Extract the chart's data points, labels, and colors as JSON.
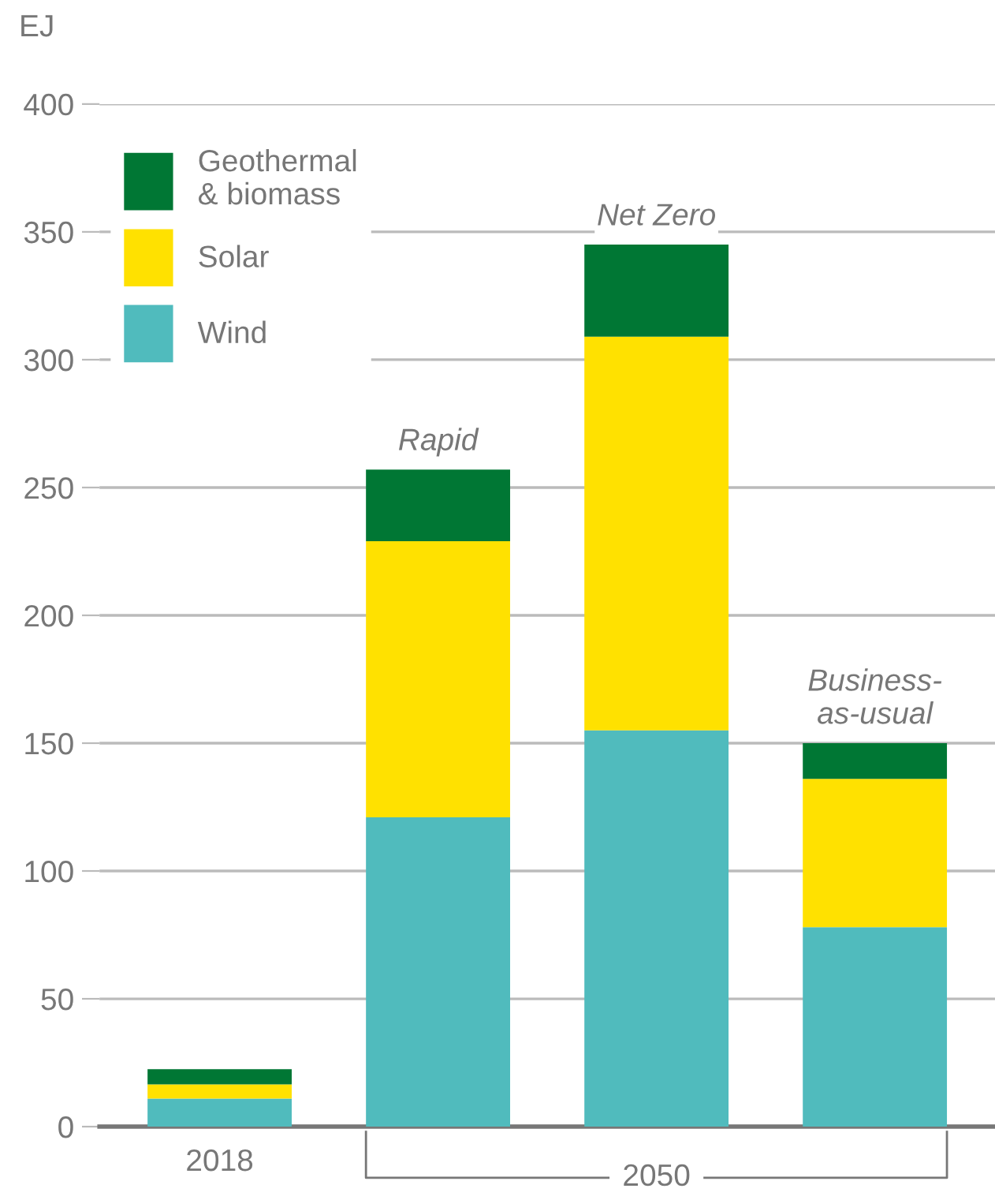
{
  "chart_data": {
    "type": "bar",
    "stacked": true,
    "ylabel": "EJ",
    "categories": [
      "2018",
      null,
      null,
      null
    ],
    "series": [
      {
        "name": "Wind",
        "color": "#50bbbd",
        "values": [
          11,
          121,
          155,
          78
        ]
      },
      {
        "name": "Solar",
        "color": "#ffe100",
        "values": [
          5.5,
          108,
          154,
          58
        ]
      },
      {
        "name": "Geothermal\n& biomass",
        "color": "#007734",
        "values": [
          6,
          28,
          36,
          14
        ]
      }
    ],
    "ylim": [
      0,
      400
    ],
    "yticks": [
      0,
      50,
      100,
      150,
      200,
      250,
      300,
      350,
      400
    ],
    "grid": "y",
    "legend": "top left",
    "annotations": [
      {
        "text": "Rapid",
        "y": 257
      },
      {
        "text": "Net Zero",
        "y": 345
      },
      {
        "text": "Business-\nas-usual",
        "y": 150
      },
      "2050"
    ]
  }
}
